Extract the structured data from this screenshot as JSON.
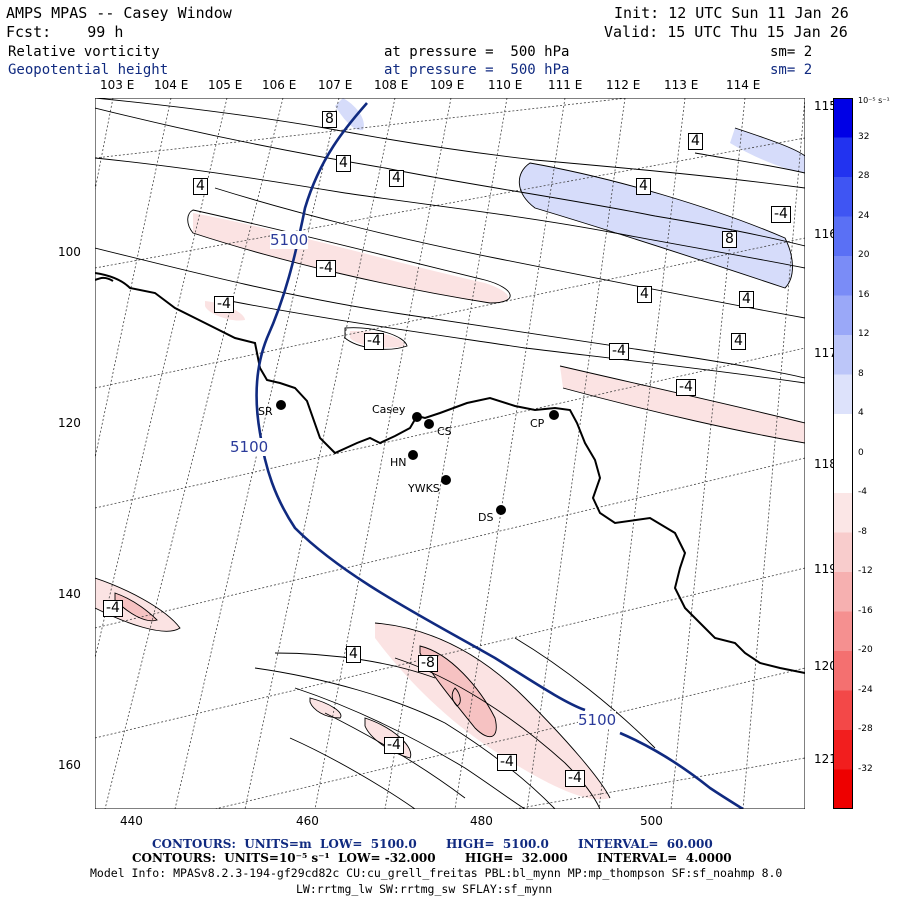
{
  "header": {
    "title": "AMPS MPAS -- Casey Window",
    "fcst": "Fcst:    99 h",
    "init": "Init: 12 UTC Sun 11 Jan 26",
    "valid": "Valid: 15 UTC Thu 15 Jan 26",
    "field1": "Relative vorticity",
    "field1_level": "at pressure =  500 hPa",
    "field1_sm": "sm= 2",
    "field2": "Geopotential height",
    "field2_level": "at pressure =  500 hPa",
    "field2_sm": "sm= 2"
  },
  "axes": {
    "top_lon_labels": [
      "103 E",
      "104 E",
      "105 E",
      "106 E",
      "107 E",
      "108 E",
      "109 E",
      "110 E",
      "111 E",
      "112 E",
      "113 E",
      "114 E"
    ],
    "left_labels": [
      "100",
      "120",
      "140",
      "160"
    ],
    "bottom_labels": [
      "440",
      "460",
      "480",
      "500"
    ],
    "right_lon_labels": [
      "115 E",
      "116 E",
      "117 E",
      "118 E",
      "119 E",
      "120 E",
      "121 E"
    ]
  },
  "stations": [
    {
      "name": "Casey"
    },
    {
      "name": "CS"
    },
    {
      "name": "SR"
    },
    {
      "name": "HN"
    },
    {
      "name": "YWKS"
    },
    {
      "name": "DS"
    },
    {
      "name": "CP"
    }
  ],
  "contour_labels": {
    "vort": [
      "8",
      "4",
      "4",
      "4",
      "-4",
      "4",
      "-4",
      "8",
      "4",
      "-4",
      "-4",
      "4",
      "-4",
      "4",
      "4",
      "-4",
      "-4",
      "4",
      "-8",
      "-4",
      "-4",
      "-4"
    ],
    "height": [
      "5100",
      "5100",
      "5100"
    ]
  },
  "colorbar": {
    "unit": "10⁻⁵ s⁻¹",
    "ticks": [
      "32",
      "28",
      "24",
      "20",
      "16",
      "12",
      "8",
      "4",
      "0",
      "-4",
      "-8",
      "-12",
      "-16",
      "-20",
      "-24",
      "-28",
      "-32"
    ],
    "colors": [
      "#0000e6",
      "#2233f0",
      "#3f55f3",
      "#5a70f5",
      "#7a8cf7",
      "#9aa8f8",
      "#bcc6f9",
      "#dde2fb",
      "#ffffff",
      "#ffffff",
      "#fbe6e6",
      "#f8cccc",
      "#f6b0b0",
      "#f59090",
      "#f47070",
      "#f34848",
      "#f21e1e",
      "#ee0000"
    ]
  },
  "footer": {
    "line1": "CONTOURS:  UNITS=m  LOW=  5100.0       HIGH=  5100.0       INTERVAL=  60.000",
    "line2": "CONTOURS:  UNITS=10⁻⁵ s⁻¹  LOW= -32.000       HIGH=  32.000       INTERVAL=  4.0000",
    "line3": "Model Info: MPASv8.2.3-194-gf29cd82c CU:cu_grell_freitas PBL:bl_mynn MP:mp_thompson SF:sf_noahmp 8.0",
    "line4": "LW:rrtmg_lw SW:rrtmg_sw SFLAY:sf_mynn"
  }
}
